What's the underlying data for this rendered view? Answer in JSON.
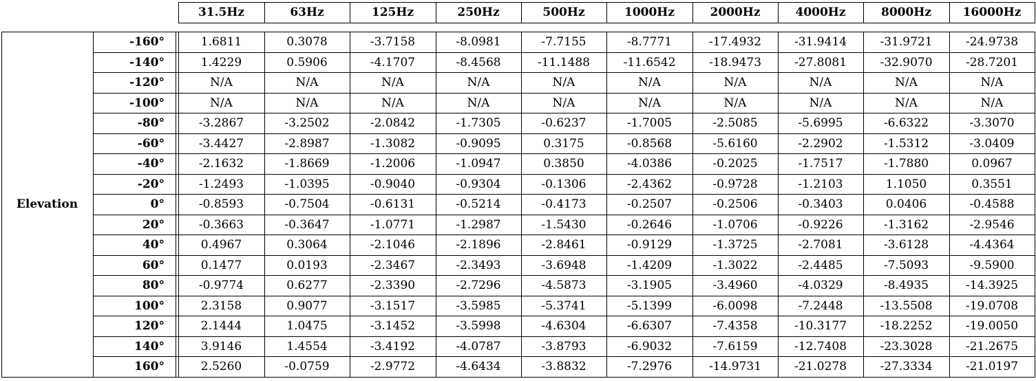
{
  "table": {
    "row_group_label": "Elevation",
    "column_headers": [
      "31.5Hz",
      "63Hz",
      "125Hz",
      "250Hz",
      "500Hz",
      "1000Hz",
      "2000Hz",
      "4000Hz",
      "8000Hz",
      "16000Hz"
    ],
    "rows": [
      {
        "label": "-160°",
        "values": [
          "1.6811",
          "0.3078",
          "-3.7158",
          "-8.0981",
          "-7.7155",
          "-8.7771",
          "-17.4932",
          "-31.9414",
          "-31.9721",
          "-24.9738"
        ]
      },
      {
        "label": "-140°",
        "values": [
          "1.4229",
          "0.5906",
          "-4.1707",
          "-8.4568",
          "-11.1488",
          "-11.6542",
          "-18.9473",
          "-27.8081",
          "-32.9070",
          "-28.7201"
        ]
      },
      {
        "label": "-120°",
        "values": [
          "N/A",
          "N/A",
          "N/A",
          "N/A",
          "N/A",
          "N/A",
          "N/A",
          "N/A",
          "N/A",
          "N/A"
        ]
      },
      {
        "label": "-100°",
        "values": [
          "N/A",
          "N/A",
          "N/A",
          "N/A",
          "N/A",
          "N/A",
          "N/A",
          "N/A",
          "N/A",
          "N/A"
        ]
      },
      {
        "label": "-80°",
        "values": [
          "-3.2867",
          "-3.2502",
          "-2.0842",
          "-1.7305",
          "-0.6237",
          "-1.7005",
          "-2.5085",
          "-5.6995",
          "-6.6322",
          "-3.3070"
        ]
      },
      {
        "label": "-60°",
        "values": [
          "-3.4427",
          "-2.8987",
          "-1.3082",
          "-0.9095",
          "0.3175",
          "-0.8568",
          "-5.6160",
          "-2.2902",
          "-1.5312",
          "-3.0409"
        ]
      },
      {
        "label": "-40°",
        "values": [
          "-2.1632",
          "-1.8669",
          "-1.2006",
          "-1.0947",
          "0.3850",
          "-4.0386",
          "-0.2025",
          "-1.7517",
          "-1.7880",
          "0.0967"
        ]
      },
      {
        "label": "-20°",
        "values": [
          "-1.2493",
          "-1.0395",
          "-0.9040",
          "-0.9304",
          "-0.1306",
          "-2.4362",
          "-0.9728",
          "-1.2103",
          "1.1050",
          "0.3551"
        ]
      },
      {
        "label": "0°",
        "values": [
          "-0.8593",
          "-0.7504",
          "-0.6131",
          "-0.5214",
          "-0.4173",
          "-0.2507",
          "-0.2506",
          "-0.3403",
          "0.0406",
          "-0.4588"
        ]
      },
      {
        "label": "20°",
        "values": [
          "-0.3663",
          "-0.3647",
          "-1.0771",
          "-1.2987",
          "-1.5430",
          "-0.2646",
          "-1.0706",
          "-0.9226",
          "-1.3162",
          "-2.9546"
        ]
      },
      {
        "label": "40°",
        "values": [
          "0.4967",
          "0.3064",
          "-2.1046",
          "-2.1896",
          "-2.8461",
          "-0.9129",
          "-1.3725",
          "-2.7081",
          "-3.6128",
          "-4.4364"
        ]
      },
      {
        "label": "60°",
        "values": [
          "0.1477",
          "0.0193",
          "-2.3467",
          "-2.3493",
          "-3.6948",
          "-1.4209",
          "-1.3022",
          "-2.4485",
          "-7.5093",
          "-9.5900"
        ]
      },
      {
        "label": "80°",
        "values": [
          "-0.9774",
          "0.6277",
          "-2.3390",
          "-2.7296",
          "-4.5873",
          "-3.1905",
          "-3.4960",
          "-4.0329",
          "-8.4935",
          "-14.3925"
        ]
      },
      {
        "label": "100°",
        "values": [
          "2.3158",
          "0.9077",
          "-3.1517",
          "-3.5985",
          "-5.3741",
          "-5.1399",
          "-6.0098",
          "-7.2448",
          "-13.5508",
          "-19.0708"
        ]
      },
      {
        "label": "120°",
        "values": [
          "2.1444",
          "1.0475",
          "-3.1452",
          "-3.5998",
          "-4.6304",
          "-6.6307",
          "-7.4358",
          "-10.3177",
          "-18.2252",
          "-19.0050"
        ]
      },
      {
        "label": "140°",
        "values": [
          "3.9146",
          "1.4554",
          "-3.4192",
          "-4.0787",
          "-3.8793",
          "-6.9032",
          "-7.6159",
          "-12.7408",
          "-23.3028",
          "-21.2675"
        ]
      },
      {
        "label": "160°",
        "values": [
          "2.5260",
          "-0.0759",
          "-2.9772",
          "-4.6434",
          "-3.8832",
          "-7.2976",
          "-14.9731",
          "-21.0278",
          "-27.3334",
          "-21.0197"
        ]
      }
    ]
  }
}
